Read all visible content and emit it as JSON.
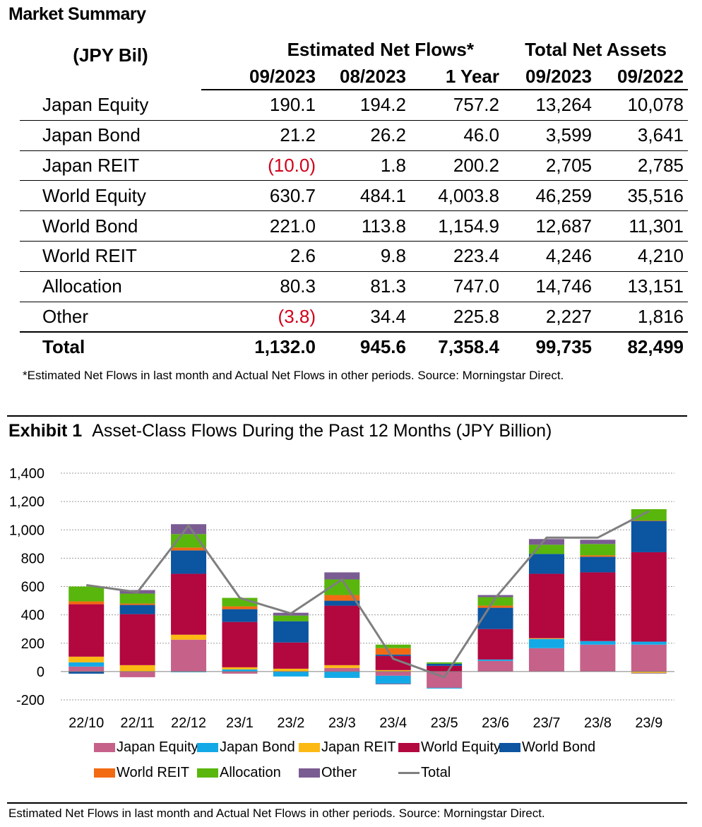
{
  "summary": {
    "title": "Market Summary",
    "unit_label": "(JPY Bil)",
    "group_flows": "Estimated Net Flows*",
    "group_assets": "Total Net Assets",
    "columns": [
      "09/2023",
      "08/2023",
      "1 Year",
      "09/2023",
      "09/2022"
    ],
    "rows": [
      {
        "name": "Japan Equity",
        "cells": [
          "190.1",
          "194.2",
          "757.2",
          "13,264",
          "10,078"
        ]
      },
      {
        "name": "Japan Bond",
        "cells": [
          "21.2",
          "26.2",
          "46.0",
          "3,599",
          "3,641"
        ]
      },
      {
        "name": "Japan REIT",
        "cells": [
          "(10.0)",
          "1.8",
          "200.2",
          "2,705",
          "2,785"
        ]
      },
      {
        "name": "World Equity",
        "cells": [
          "630.7",
          "484.1",
          "4,003.8",
          "46,259",
          "35,516"
        ]
      },
      {
        "name": "World Bond",
        "cells": [
          "221.0",
          "113.8",
          "1,154.9",
          "12,687",
          "11,301"
        ]
      },
      {
        "name": "World REIT",
        "cells": [
          "2.6",
          "9.8",
          "223.4",
          "4,246",
          "4,210"
        ]
      },
      {
        "name": "Allocation",
        "cells": [
          "80.3",
          "81.3",
          "747.0",
          "14,746",
          "13,151"
        ]
      },
      {
        "name": "Other",
        "cells": [
          "(3.8)",
          "34.4",
          "225.8",
          "2,227",
          "1,816"
        ]
      }
    ],
    "total": {
      "name": "Total",
      "cells": [
        "1,132.0",
        "945.6",
        "7,358.4",
        "99,735",
        "82,499"
      ]
    },
    "footnote": "*Estimated Net Flows in last month and Actual Net Flows in other periods. Source: Morningstar Direct.",
    "negative_color": "#d0021b"
  },
  "exhibit": {
    "label": "Exhibit 1",
    "title": "Asset-Class Flows During the Past 12 Months (JPY Billion)",
    "footnote": "Estimated Net Flows in last month and Actual Net Flows in other periods. Source: Morningstar Direct."
  },
  "chart_data": {
    "type": "bar",
    "stacked": true,
    "categories": [
      "22/10",
      "22/11",
      "22/12",
      "23/1",
      "23/2",
      "23/3",
      "23/4",
      "23/5",
      "23/6",
      "23/7",
      "23/8",
      "23/9"
    ],
    "ylim": [
      -200,
      1400
    ],
    "yticks": [
      -200,
      0,
      200,
      400,
      600,
      800,
      1000,
      1200,
      1400
    ],
    "ytick_labels": [
      "-200",
      "0",
      "200",
      "400",
      "600",
      "800",
      "1,000",
      "1,200",
      "1,400"
    ],
    "grid": true,
    "legend_position": "bottom",
    "series": [
      {
        "name": "Japan Equity",
        "color": "#c6618a",
        "values": [
          35,
          -40,
          225,
          -15,
          0,
          25,
          -30,
          -115,
          75,
          165,
          190,
          190
        ]
      },
      {
        "name": "Japan Bond",
        "color": "#13a9e6",
        "values": [
          30,
          0,
          -5,
          15,
          -35,
          -45,
          -55,
          -5,
          10,
          65,
          25,
          21
        ]
      },
      {
        "name": "Japan REIT",
        "color": "#fcb913",
        "values": [
          40,
          45,
          35,
          15,
          20,
          20,
          10,
          0,
          0,
          5,
          0,
          -10
        ]
      },
      {
        "name": "World Equity",
        "color": "#b2073f",
        "values": [
          370,
          360,
          430,
          320,
          185,
          420,
          100,
          40,
          215,
          455,
          485,
          631
        ]
      },
      {
        "name": "World Bond",
        "color": "#0b55a1",
        "values": [
          -15,
          65,
          165,
          90,
          150,
          35,
          10,
          15,
          150,
          140,
          110,
          221
        ]
      },
      {
        "name": "World REIT",
        "color": "#f26a12",
        "values": [
          20,
          10,
          20,
          20,
          0,
          40,
          45,
          0,
          15,
          0,
          10,
          3
        ]
      },
      {
        "name": "Allocation",
        "color": "#59b60c",
        "values": [
          105,
          70,
          95,
          60,
          40,
          110,
          25,
          10,
          60,
          65,
          80,
          80
        ]
      },
      {
        "name": "Other",
        "color": "#7a5c92",
        "values": [
          0,
          25,
          70,
          0,
          20,
          50,
          -5,
          0,
          15,
          40,
          30,
          -4
        ]
      }
    ],
    "total_line": {
      "name": "Total",
      "color": "#7f7f7f",
      "values": [
        610,
        560,
        1030,
        520,
        410,
        650,
        90,
        -40,
        520,
        945,
        945,
        1132
      ]
    }
  }
}
